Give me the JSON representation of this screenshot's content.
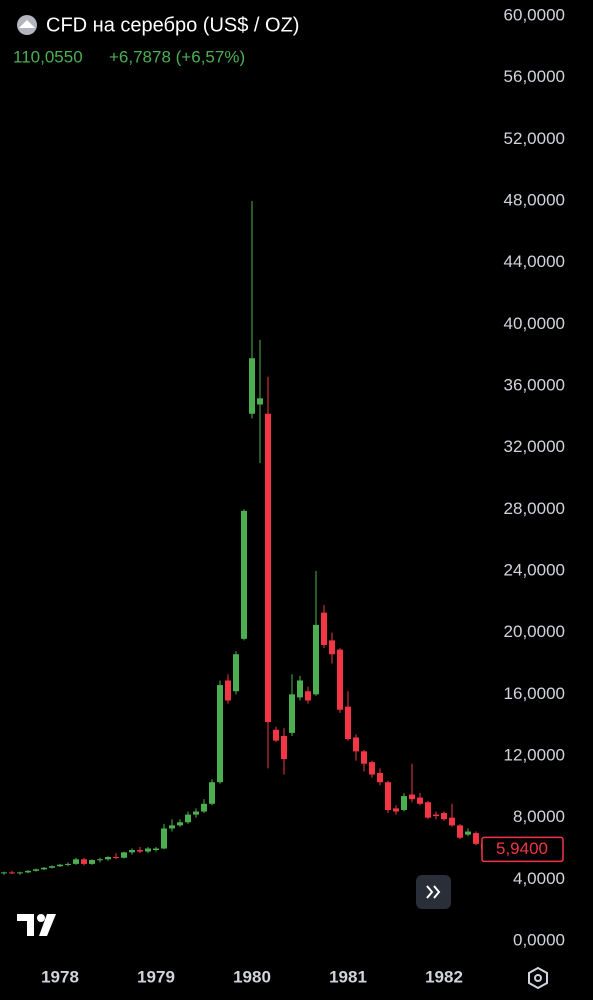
{
  "chart_data": {
    "type": "candlestick",
    "title": "CFD на серебро (US$ / OZ)",
    "quote": {
      "price": "110,0550",
      "change": "+6,7878 (+6,57%)"
    },
    "up_color": "#4caf50",
    "down_color": "#f23645",
    "open": [
      4.4,
      4.45,
      4.4,
      4.45,
      4.55,
      4.65,
      4.75,
      4.85,
      4.95,
      5.0,
      5.3,
      5.0,
      5.25,
      5.3,
      5.45,
      5.4,
      5.75,
      5.9,
      5.8,
      5.9,
      6.0,
      7.3,
      7.5,
      7.7,
      8.2,
      8.4,
      8.9,
      10.3,
      16.9,
      16.2,
      19.6,
      34.2,
      34.8,
      34.2,
      13.7,
      13.3,
      13.5,
      15.8,
      16.2,
      16.0,
      21.3,
      19.5,
      18.9,
      15.2,
      13.2,
      12.3,
      11.6,
      10.9,
      10.3,
      8.6,
      8.5,
      9.5,
      9.3,
      9.0,
      8.2,
      8.3,
      8.0,
      7.5,
      6.9,
      7.0,
      6.3
    ],
    "high": [
      4.5,
      4.55,
      4.5,
      4.6,
      4.7,
      4.8,
      4.9,
      5.0,
      5.1,
      5.4,
      5.4,
      5.3,
      5.4,
      5.5,
      5.7,
      5.8,
      6.0,
      6.1,
      6.1,
      6.1,
      7.6,
      7.9,
      7.9,
      8.4,
      8.6,
      9.2,
      10.5,
      16.9,
      17.3,
      18.8,
      28.0,
      48.0,
      39.0,
      36.6,
      13.9,
      13.8,
      17.3,
      17.2,
      16.5,
      24.0,
      21.8,
      20.0,
      19.0,
      16.2,
      13.4,
      12.4,
      11.7,
      11.2,
      10.4,
      8.8,
      9.6,
      11.5,
      9.6,
      9.1,
      8.4,
      8.4,
      8.9,
      7.6,
      7.3,
      7.1,
      6.4
    ],
    "low": [
      4.3,
      4.35,
      4.3,
      4.4,
      4.5,
      4.6,
      4.7,
      4.8,
      4.85,
      4.95,
      4.9,
      4.95,
      5.1,
      5.2,
      5.3,
      5.35,
      5.6,
      5.7,
      5.7,
      5.8,
      5.95,
      7.1,
      7.4,
      7.6,
      8.0,
      8.3,
      8.8,
      10.2,
      15.4,
      16.0,
      19.5,
      33.9,
      31.0,
      11.2,
      12.9,
      10.8,
      13.3,
      15.6,
      15.4,
      15.9,
      19.0,
      18.0,
      14.8,
      13.0,
      11.7,
      11.0,
      10.6,
      10.1,
      8.3,
      8.2,
      8.4,
      9.0,
      8.8,
      7.9,
      7.9,
      7.8,
      7.4,
      6.6,
      6.8,
      6.2,
      5.8
    ],
    "close": [
      4.45,
      4.4,
      4.45,
      4.55,
      4.65,
      4.75,
      4.85,
      4.95,
      5.0,
      5.3,
      5.0,
      5.25,
      5.3,
      5.45,
      5.4,
      5.75,
      5.9,
      5.8,
      6.0,
      6.0,
      7.3,
      7.5,
      7.7,
      8.2,
      8.4,
      8.9,
      10.3,
      16.6,
      15.6,
      18.6,
      27.9,
      37.8,
      35.2,
      14.2,
      13.0,
      11.8,
      16.0,
      16.9,
      15.6,
      20.5,
      19.2,
      18.6,
      15.0,
      13.1,
      12.3,
      11.5,
      10.8,
      10.3,
      8.5,
      8.4,
      9.4,
      9.2,
      8.9,
      8.0,
      8.1,
      7.9,
      7.5,
      6.7,
      7.1,
      6.3,
      5.94
    ],
    "ylim": [
      0,
      60
    ],
    "yticks": [
      {
        "value": 0,
        "label": "0,0000"
      },
      {
        "value": 4,
        "label": "4,0000"
      },
      {
        "value": 8,
        "label": "8,0000"
      },
      {
        "value": 12,
        "label": "12,0000"
      },
      {
        "value": 16,
        "label": "16,0000"
      },
      {
        "value": 20,
        "label": "20,0000"
      },
      {
        "value": 24,
        "label": "24,0000"
      },
      {
        "value": 28,
        "label": "28,0000"
      },
      {
        "value": 32,
        "label": "32,0000"
      },
      {
        "value": 36,
        "label": "36,0000"
      },
      {
        "value": 40,
        "label": "40,0000"
      },
      {
        "value": 44,
        "label": "44,0000"
      },
      {
        "value": 48,
        "label": "48,0000"
      },
      {
        "value": 52,
        "label": "52,0000"
      },
      {
        "value": 56,
        "label": "56,0000"
      },
      {
        "value": 60,
        "label": "60,0000"
      }
    ],
    "xticks": [
      {
        "value": 7,
        "label": "1978"
      },
      {
        "value": 19,
        "label": "1979"
      },
      {
        "value": 31,
        "label": "1980"
      },
      {
        "value": 43,
        "label": "1981"
      },
      {
        "value": 55,
        "label": "1982"
      }
    ],
    "last_price": {
      "value": 5.94,
      "label": "5,9400"
    }
  }
}
